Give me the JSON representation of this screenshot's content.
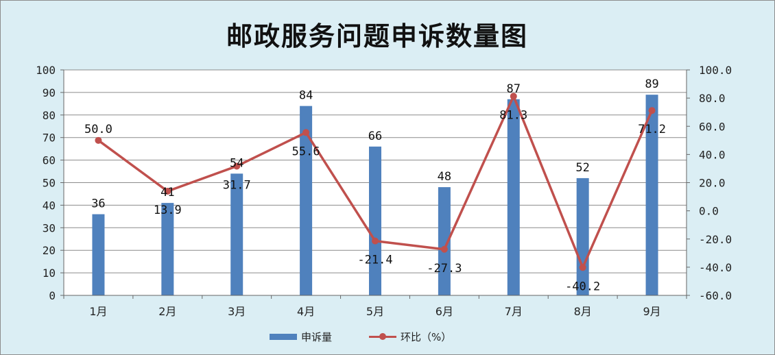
{
  "chart_data": {
    "type": "bar",
    "title": "邮政服务问题申诉数量图",
    "categories": [
      "1月",
      "2月",
      "3月",
      "4月",
      "5月",
      "6月",
      "7月",
      "8月",
      "9月"
    ],
    "series": [
      {
        "name": "申诉量",
        "type": "bar",
        "axis": "left",
        "color": "#4f81bd",
        "values": [
          36,
          41,
          54,
          84,
          66,
          48,
          87,
          52,
          89
        ],
        "labels": [
          "36",
          "41",
          "54",
          "84",
          "66",
          "48",
          "87",
          "52",
          "89"
        ]
      },
      {
        "name": "环比（%）",
        "type": "line",
        "axis": "right",
        "color": "#c0504d",
        "values": [
          50.0,
          13.9,
          31.7,
          55.6,
          -21.4,
          -27.3,
          81.3,
          -40.2,
          71.2
        ],
        "labels": [
          "50.0",
          "13.9",
          "31.7",
          "55.6",
          "-21.4",
          "-27.3",
          "81.3",
          "-40.2",
          "71.2"
        ]
      }
    ],
    "y_left": {
      "range": [
        0,
        100
      ],
      "ticks": [
        "0",
        "10",
        "20",
        "30",
        "40",
        "50",
        "60",
        "70",
        "80",
        "90",
        "100"
      ]
    },
    "y_right": {
      "range": [
        -60,
        100
      ],
      "ticks": [
        "-60.0",
        "-40.0",
        "-20.0",
        "0.0",
        "20.0",
        "40.0",
        "60.0",
        "80.0",
        "100.0"
      ]
    },
    "grid": true,
    "legend_position": "bottom",
    "background_color": "#dbeef4",
    "plot_background_color": "#ffffff"
  }
}
